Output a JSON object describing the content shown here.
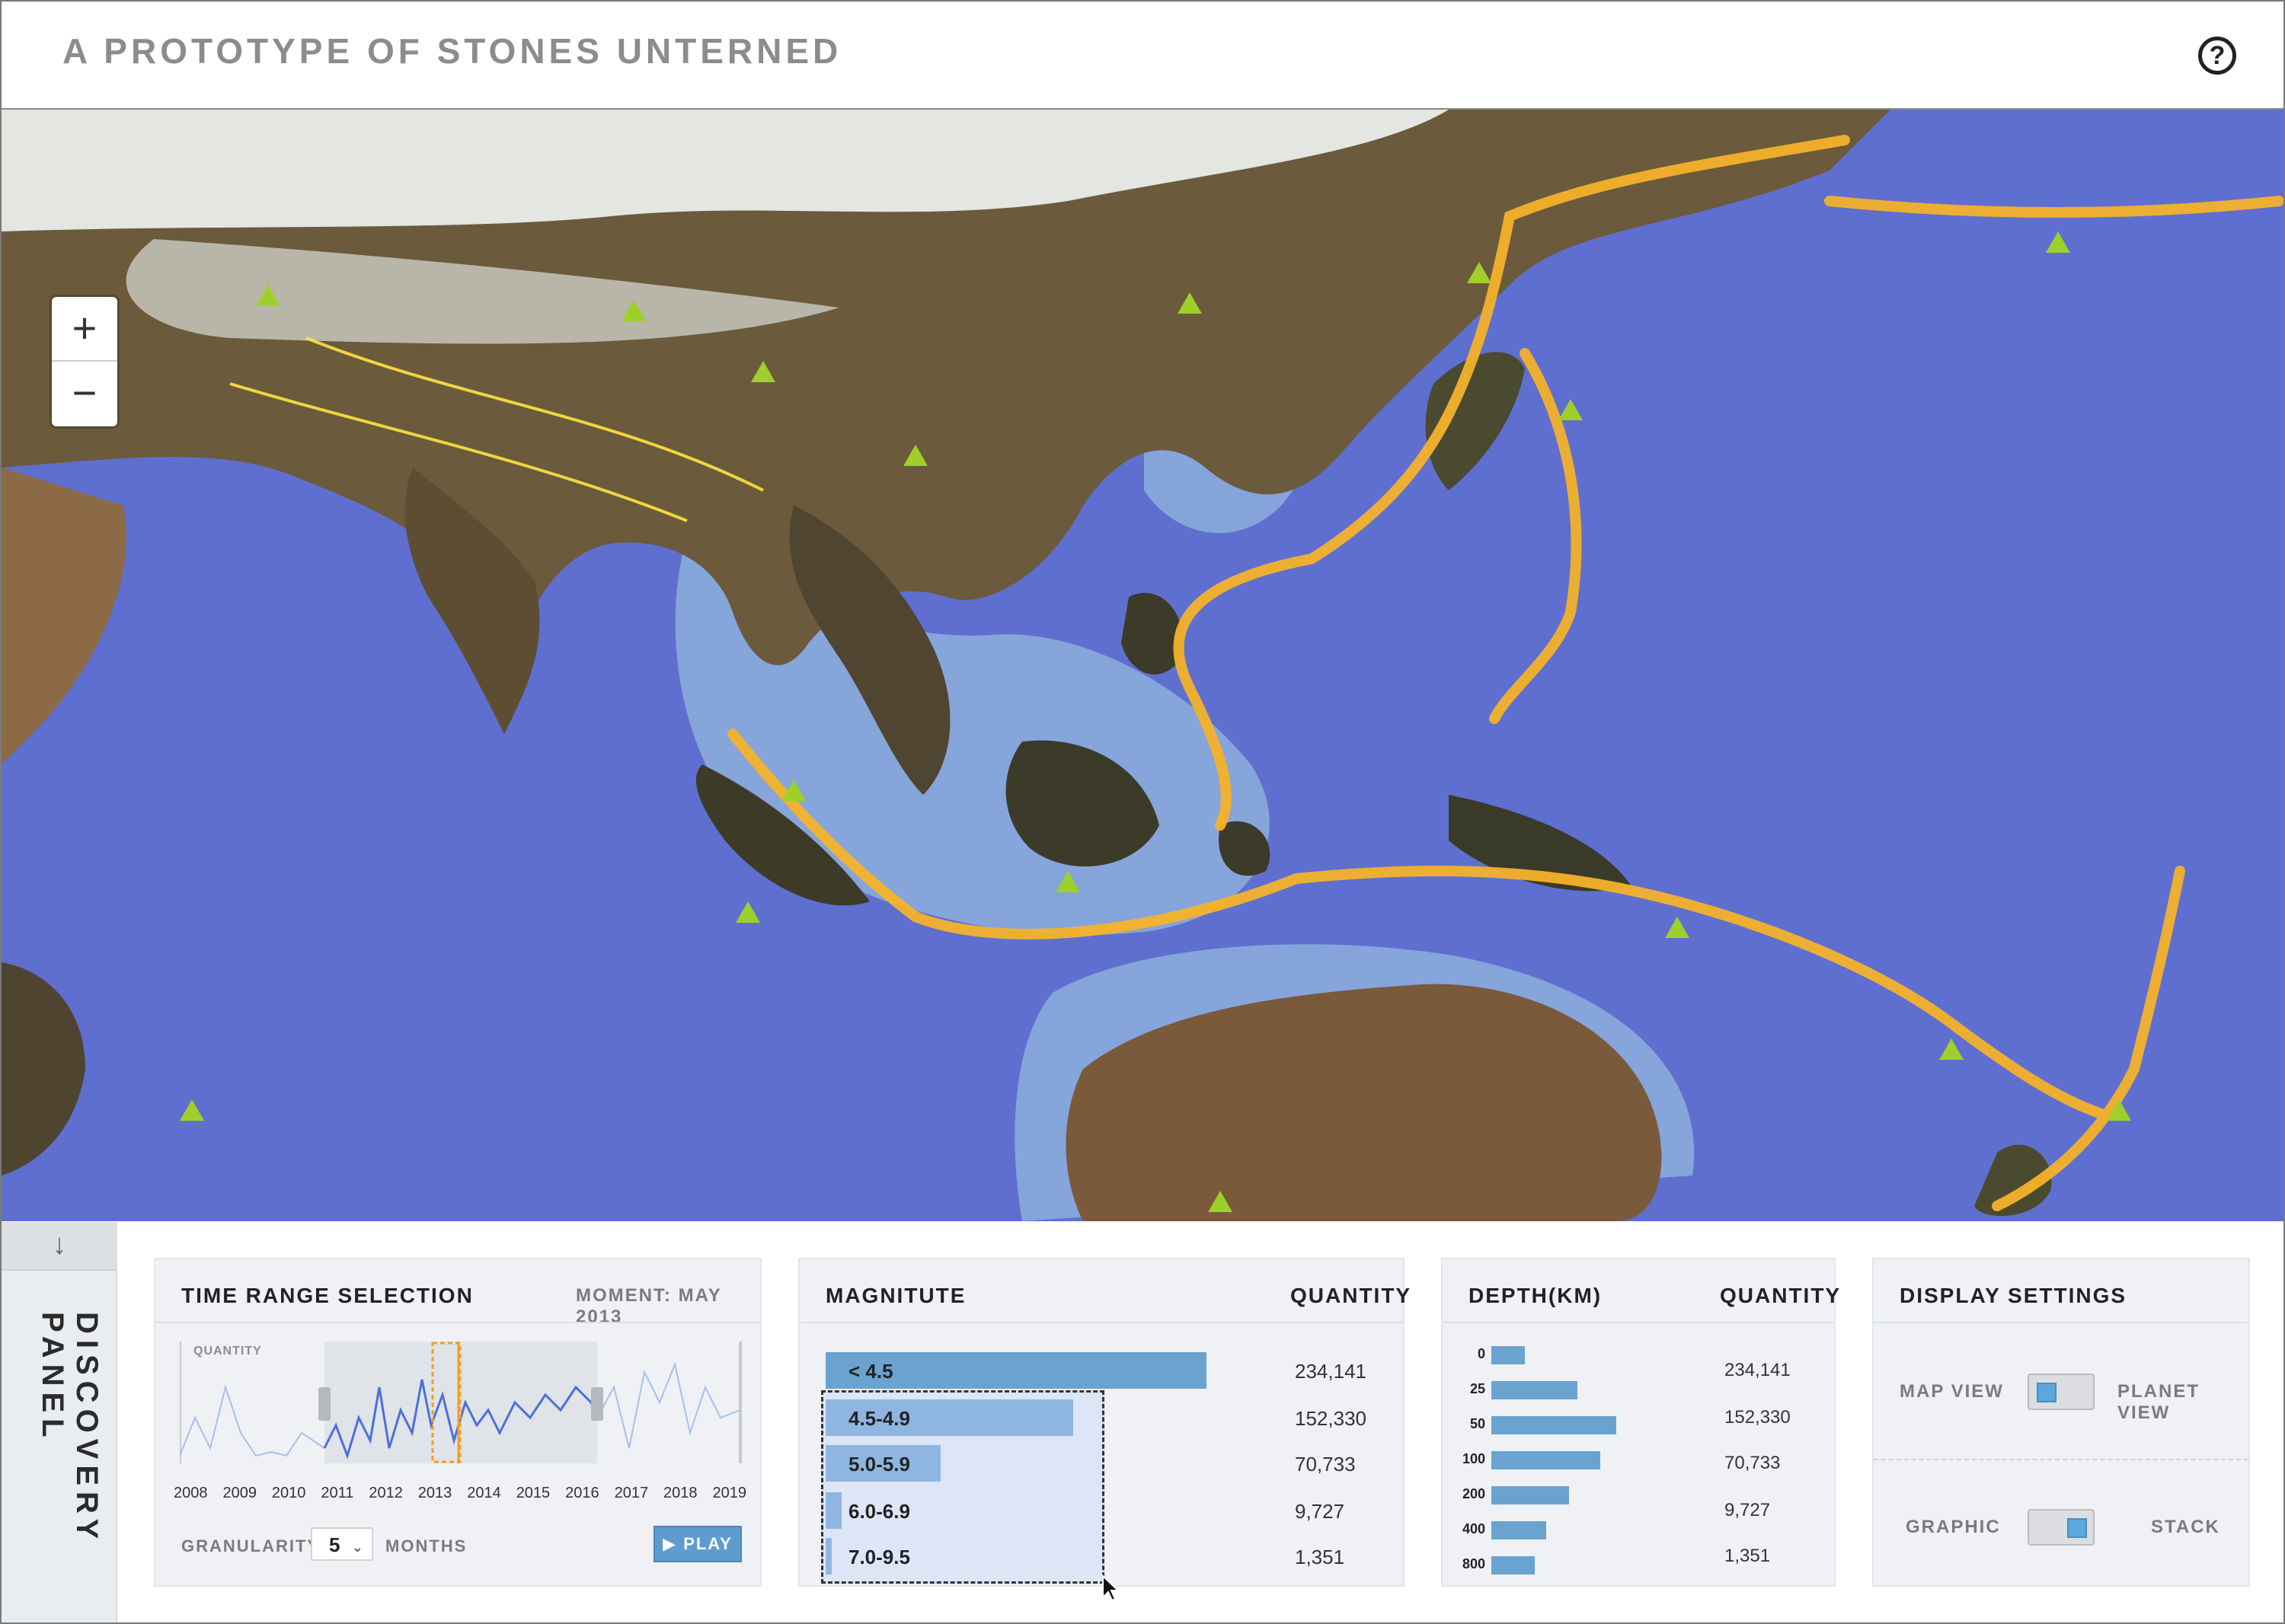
{
  "app": {
    "title": "A PROTOTYPE OF STONES UNTERNED",
    "help_icon": "help-icon"
  },
  "map": {
    "zoom_in": "+",
    "zoom_out": "−"
  },
  "discovery_panel": {
    "label": "DISCOVERY PANEL",
    "collapse_glyph": "↓"
  },
  "time_range": {
    "title": "TIME RANGE SELECTION",
    "moment": "MOMENT: MAY 2013",
    "sparkline_label": "QUANTITY",
    "years": [
      "2008",
      "2009",
      "2010",
      "2011",
      "2012",
      "2013",
      "2014",
      "2015",
      "2016",
      "2017",
      "2018",
      "2019"
    ],
    "granularity_label": "GRANULARITY:",
    "granularity_value": "5",
    "granularity_unit": "MONTHS",
    "play_label": "PLAY"
  },
  "magnitude": {
    "title": "MAGNITUTE",
    "quantity_header": "QUANTITY",
    "rows": [
      {
        "label": "< 4.5",
        "quantity": "234,141",
        "value": 234141
      },
      {
        "label": "4.5-4.9",
        "quantity": "152,330",
        "value": 152330
      },
      {
        "label": "5.0-5.9",
        "quantity": "70,733",
        "value": 70733
      },
      {
        "label": "6.0-6.9",
        "quantity": "9,727",
        "value": 9727
      },
      {
        "label": "7.0-9.5",
        "quantity": "1,351",
        "value": 1351
      }
    ]
  },
  "depth": {
    "title": "DEPTH(KM)",
    "quantity_header": "QUANTITY",
    "rows": [
      {
        "label": "0"
      },
      {
        "label": "25"
      },
      {
        "label": "50"
      },
      {
        "label": "100"
      },
      {
        "label": "200"
      },
      {
        "label": "400"
      },
      {
        "label": "800"
      }
    ],
    "bar_values": [
      0.27,
      0.69,
      1.0,
      0.87,
      0.62,
      0.44,
      0.35
    ],
    "quantities": [
      "234,141",
      "152,330",
      "70,733",
      "9,727",
      "1,351"
    ]
  },
  "display_settings": {
    "title": "DISPLAY SETTINGS",
    "map_view": "MAP VIEW",
    "planet_view": "PLANET VIEW",
    "graphic": "GRAPHIC",
    "stack": "STACK"
  },
  "colors": {
    "accent": "#6aa3cf",
    "ocean": "#5f6fd0",
    "land": "#6e5a3a",
    "quake": "#f4b22a",
    "volcano": "#9fcf2a"
  }
}
